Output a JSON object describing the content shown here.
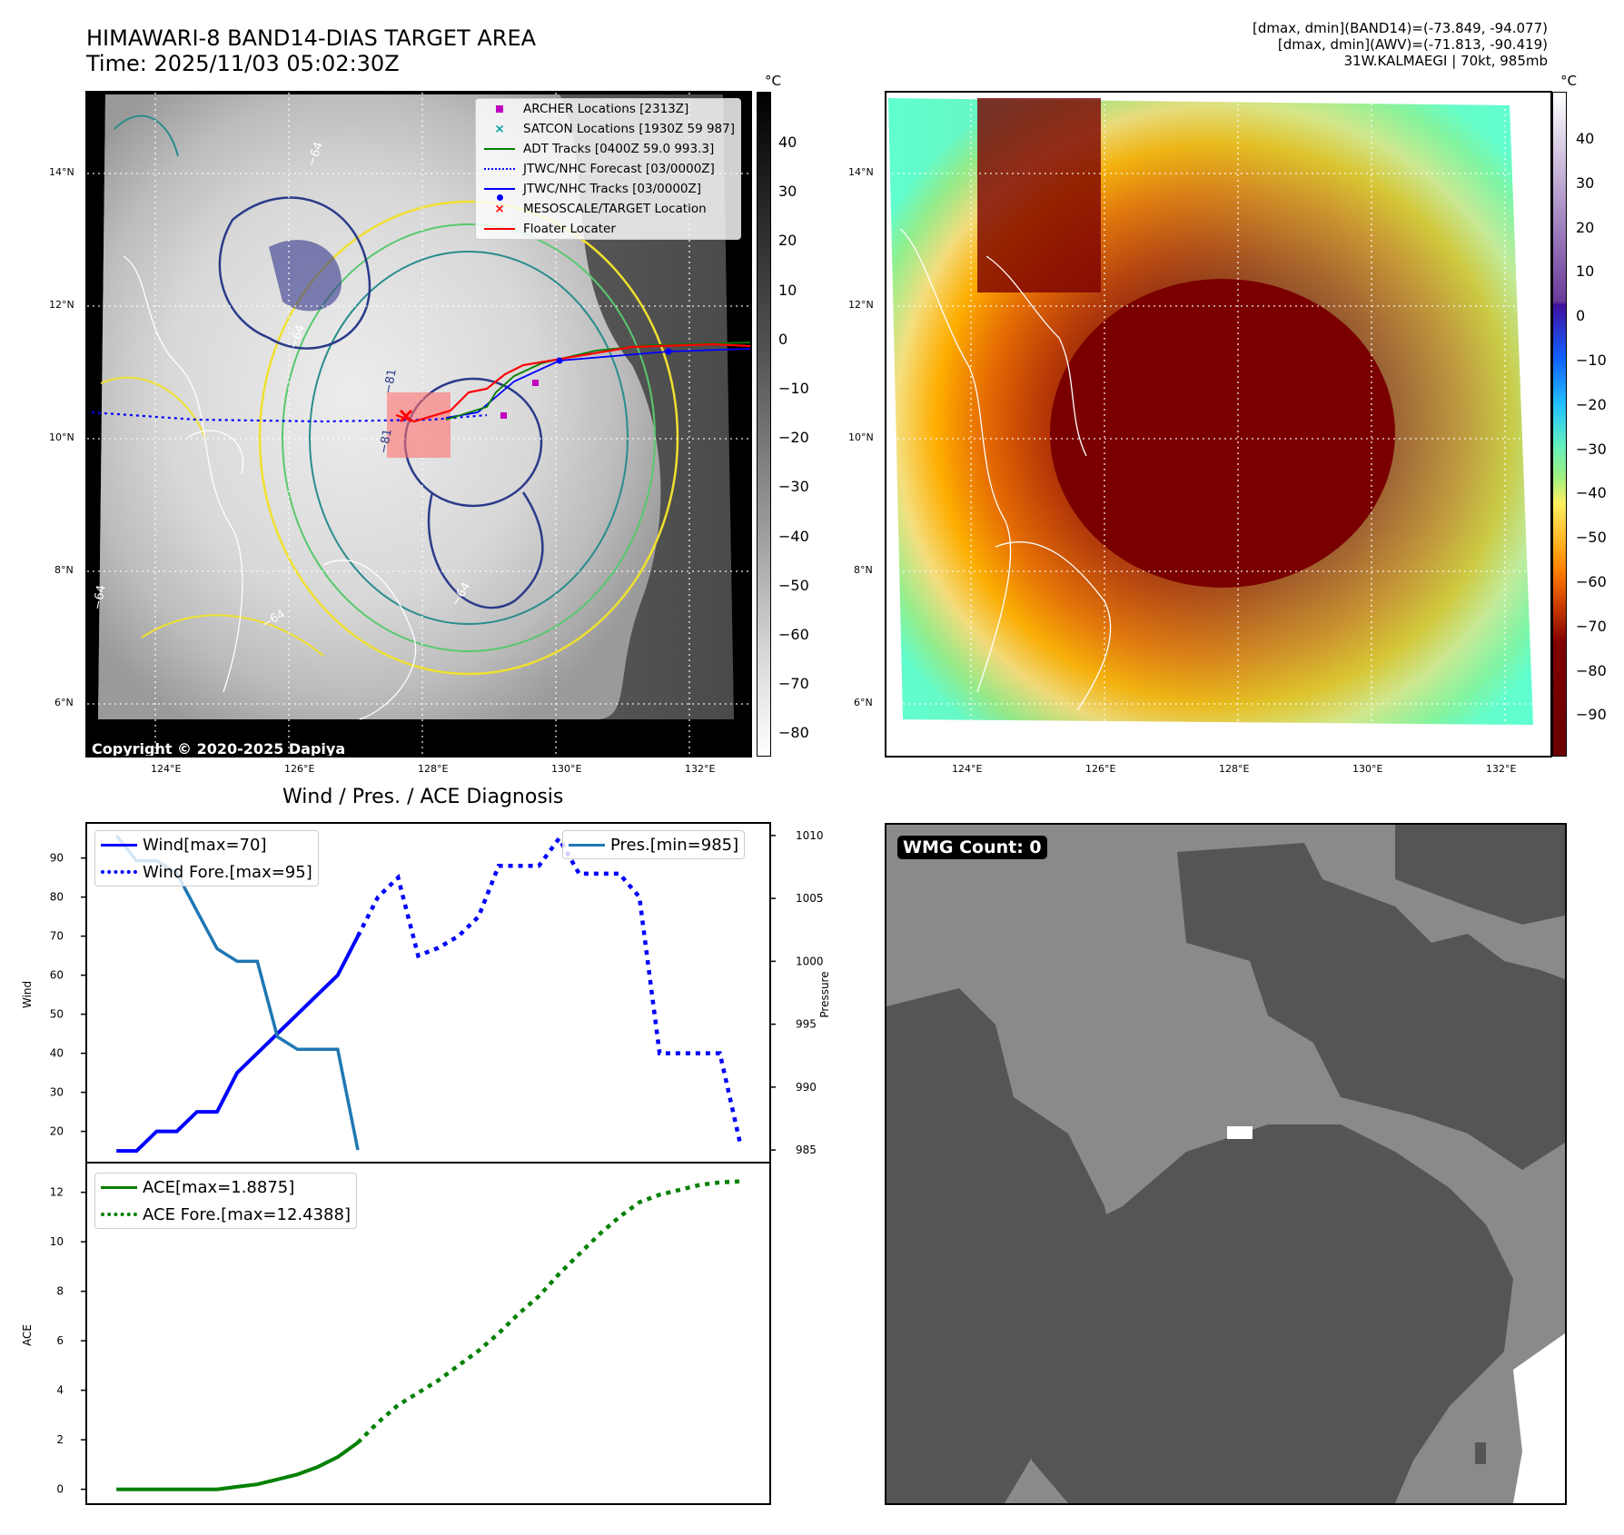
{
  "header": {
    "title_line1": "HIMAWARI-8 BAND14-DIAS TARGET AREA",
    "title_line2": "Time: 2025/11/03 05:02:30Z",
    "info_line1": "[dmax, dmin](BAND14)=(-73.849, -94.077)",
    "info_line2": "[dmax, dmin](AWV)=(-71.813, -90.419)",
    "info_line3": "31W.KALMAEGI | 70kt, 985mb"
  },
  "map": {
    "lon_ticks": [
      "124°E",
      "126°E",
      "128°E",
      "130°E",
      "132°E"
    ],
    "lat_ticks": [
      "14°N",
      "12°N",
      "10°N",
      "8°N",
      "6°N"
    ],
    "copyright": "Copyright © 2020-2025 Dapiya",
    "contour_labels": [
      "−64",
      "−64",
      "−64",
      "−64",
      "−64",
      "−81",
      "−81"
    ]
  },
  "colorbar1": {
    "unit": "°C",
    "ticks": [
      "40",
      "30",
      "20",
      "10",
      "0",
      "−10",
      "−20",
      "−30",
      "−40",
      "−50",
      "−60",
      "−70",
      "−80"
    ]
  },
  "colorbar2": {
    "unit": "°C",
    "ticks": [
      "40",
      "30",
      "20",
      "10",
      "0",
      "−10",
      "−20",
      "−30",
      "−40",
      "−50",
      "−60",
      "−70",
      "−80",
      "−90"
    ]
  },
  "legend_map": [
    {
      "label": "ARCHER Locations [2313Z]",
      "color": "#c000c0",
      "marker": "square"
    },
    {
      "label": "SATCON Locations [1930Z 59 987]",
      "color": "#00a0a0",
      "marker": "x"
    },
    {
      "label": "ADT Tracks [0400Z 59.0 993.3]",
      "color": "#008000",
      "marker": "line"
    },
    {
      "label": "JTWC/NHC Forecast [03/0000Z]",
      "color": "#0000ff",
      "marker": "dotted"
    },
    {
      "label": "JTWC/NHC Tracks [03/0000Z]",
      "color": "#0000ff",
      "marker": "line-dot"
    },
    {
      "label": "MESOSCALE/TARGET Location",
      "color": "#ff0000",
      "marker": "x"
    },
    {
      "label": "Floater Locater",
      "color": "#ff0000",
      "marker": "line"
    }
  ],
  "diag": {
    "title": "Wind / Pres. / ACE Diagnosis",
    "wind_label": "Wind",
    "pressure_label": "Pressure",
    "ace_label": "ACE",
    "legend_wind": "Wind[max=70]",
    "legend_wind_fore": "Wind Fore.[max=95]",
    "legend_pres": "Pres.[min=985]",
    "legend_ace": "ACE[max=1.8875]",
    "legend_ace_fore": "ACE Fore.[max=12.4388]"
  },
  "wmg": {
    "label": "WMG Count: 0"
  },
  "chart_data": [
    {
      "type": "line",
      "title": "Wind / Pres. / ACE Diagnosis",
      "ylabel": "Wind",
      "ylim": [
        12,
        99
      ],
      "yticks": [
        20,
        30,
        40,
        50,
        60,
        70,
        80,
        90
      ],
      "series": [
        {
          "name": "Wind[max=70]",
          "color": "#0000ff",
          "style": "solid",
          "x": [
            0,
            1,
            2,
            3,
            4,
            5,
            6,
            7,
            8,
            9,
            10,
            11,
            12
          ],
          "values": [
            15,
            15,
            20,
            20,
            25,
            25,
            35,
            40,
            45,
            50,
            55,
            60,
            70
          ]
        },
        {
          "name": "Wind Fore.[max=95]",
          "color": "#0000ff",
          "style": "dotted",
          "x": [
            12,
            13,
            14,
            15,
            16,
            17,
            18,
            19,
            20,
            21,
            22,
            23,
            24,
            25,
            26,
            27,
            28,
            29,
            30,
            31
          ],
          "values": [
            70,
            80,
            85,
            65,
            67,
            70,
            75,
            88,
            88,
            88,
            95,
            86,
            86,
            86,
            80,
            40,
            40,
            40,
            40,
            17
          ]
        }
      ]
    },
    {
      "type": "line",
      "ylabel": "Pressure",
      "ylim": [
        984,
        1011
      ],
      "yticks": [
        985,
        990,
        995,
        1000,
        1005,
        1010
      ],
      "series": [
        {
          "name": "Pres.[min=985]",
          "color": "#1f77b4",
          "style": "solid",
          "x": [
            0,
            1,
            2,
            3,
            4,
            5,
            6,
            7,
            8,
            9,
            10,
            11,
            12
          ],
          "values": [
            1010,
            1008,
            1008,
            1007,
            1004,
            1001,
            1000,
            1000,
            994,
            993,
            993,
            993,
            985
          ]
        }
      ]
    },
    {
      "type": "line",
      "ylabel": "ACE",
      "ylim": [
        -0.6,
        13.2
      ],
      "yticks": [
        0,
        2,
        4,
        6,
        8,
        10,
        12
      ],
      "series": [
        {
          "name": "ACE[max=1.8875]",
          "color": "#008000",
          "style": "solid",
          "x": [
            0,
            1,
            2,
            3,
            4,
            5,
            6,
            7,
            8,
            9,
            10,
            11,
            12
          ],
          "values": [
            0,
            0,
            0,
            0,
            0,
            0,
            0.1,
            0.2,
            0.4,
            0.6,
            0.9,
            1.3,
            1.8875
          ]
        },
        {
          "name": "ACE Fore.[max=12.4388]",
          "color": "#008000",
          "style": "dotted",
          "x": [
            12,
            13,
            14,
            15,
            16,
            17,
            18,
            19,
            20,
            21,
            22,
            23,
            24,
            25,
            26,
            27,
            28,
            29,
            30,
            31
          ],
          "values": [
            1.8875,
            2.7,
            3.4,
            3.9,
            4.4,
            5.0,
            5.6,
            6.3,
            7.1,
            7.8,
            8.7,
            9.5,
            10.3,
            11.0,
            11.6,
            11.9,
            12.1,
            12.3,
            12.4,
            12.4388
          ]
        }
      ]
    }
  ]
}
